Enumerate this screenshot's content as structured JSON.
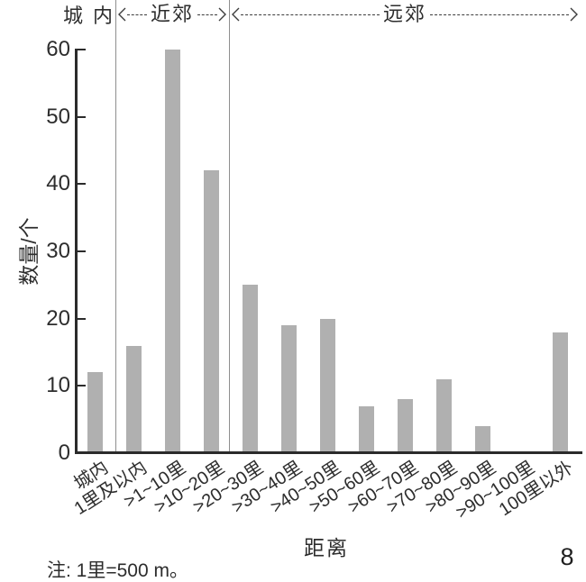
{
  "figure": {
    "note": "注: 1里=500 m。",
    "page_number": "8"
  },
  "chart_data": {
    "type": "bar",
    "title": "",
    "xlabel": "距离",
    "ylabel": "数量/个",
    "ylim": [
      0,
      60
    ],
    "yticks": [
      0,
      10,
      20,
      30,
      40,
      50,
      60
    ],
    "grid": false,
    "legend": false,
    "bar_color": "#b0b0b0",
    "axis_color": "#2b2b2b",
    "categories": [
      "城内",
      "1里及以内",
      ">1~10里",
      ">10~20里",
      ">20~30里",
      ">30~40里",
      ">40~50里",
      ">50~60里",
      ">60~70里",
      ">70~80里",
      ">80~90里",
      ">90~100里",
      "100里以外"
    ],
    "values": [
      12,
      16,
      60,
      42,
      25,
      19,
      20,
      7,
      8,
      11,
      4,
      0,
      18
    ],
    "zones": [
      {
        "label": "城内",
        "style": "text"
      },
      {
        "label": "近郊",
        "style": "dashed-arrow"
      },
      {
        "label": "远郊",
        "style": "dashed-arrow"
      }
    ]
  }
}
